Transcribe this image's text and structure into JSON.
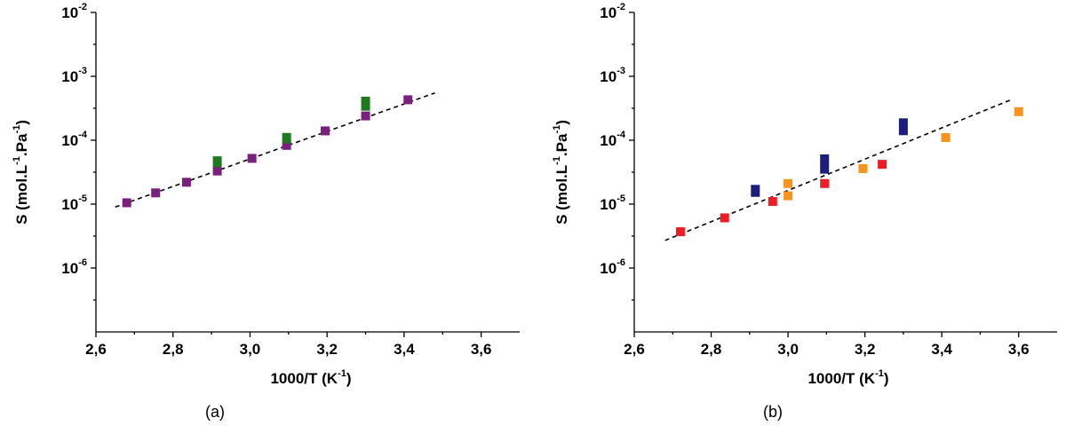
{
  "chart_data": [
    {
      "type": "scatter",
      "caption": "(a)",
      "xlabel_base": "1000/T (K",
      "xlabel_sup": "-1",
      "xlabel_end": ")",
      "ylabel_base": "S (mol.L",
      "ylabel_sup1": "-1",
      "ylabel_mid": ".Pa",
      "ylabel_sup2": "-1",
      "ylabel_end": ")",
      "xlim": [
        2.6,
        3.7
      ],
      "ylim": [
        1e-07,
        0.01
      ],
      "yscale": "log",
      "xticks": [
        "2,6",
        "2,8",
        "3,0",
        "3,2",
        "3,4",
        "3,6"
      ],
      "xtick_values": [
        2.6,
        2.8,
        3.0,
        3.2,
        3.4,
        3.6
      ],
      "ytick_exponents": [
        -6,
        -5,
        -4,
        -3,
        -2
      ],
      "ytick_base": "10",
      "grid": false,
      "series": [
        {
          "color": "#7b1f7e",
          "marker": "square",
          "points": [
            [
              2.68,
              1.05e-05
            ],
            [
              2.755,
              1.5e-05
            ],
            [
              2.835,
              2.2e-05
            ],
            [
              2.915,
              3.3e-05
            ],
            [
              3.005,
              5.2e-05
            ],
            [
              3.095,
              8.3e-05
            ],
            [
              3.195,
              0.00014
            ],
            [
              3.3,
              0.00024
            ],
            [
              3.41,
              0.00043
            ]
          ]
        },
        {
          "color": "#1e7a1e",
          "marker": "rect",
          "points": [
            [
              2.915,
              3.8e-05,
              5.6e-05
            ],
            [
              3.095,
              9e-05,
              0.00013
            ],
            [
              3.3,
              0.00029,
              0.00048
            ]
          ]
        }
      ],
      "fit_line": {
        "x": [
          2.65,
          3.48
        ],
        "y": [
          9e-06,
          0.00055
        ]
      }
    },
    {
      "type": "scatter",
      "caption": "(b)",
      "xlabel_base": "1000/T (K",
      "xlabel_sup": "-1",
      "xlabel_end": ")",
      "ylabel_base": "S (mol.L",
      "ylabel_sup1": "-1",
      "ylabel_mid": ".Pa",
      "ylabel_sup2": "-1",
      "ylabel_end": ")",
      "xlim": [
        2.6,
        3.7
      ],
      "ylim": [
        1e-07,
        0.01
      ],
      "yscale": "log",
      "xticks": [
        "2,6",
        "2,8",
        "3,0",
        "3,2",
        "3,4",
        "3,6"
      ],
      "xtick_values": [
        2.6,
        2.8,
        3.0,
        3.2,
        3.4,
        3.6
      ],
      "ytick_exponents": [
        -6,
        -5,
        -4,
        -3,
        -2
      ],
      "ytick_base": "10",
      "grid": false,
      "series": [
        {
          "color": "#ee1c24",
          "marker": "square",
          "points": [
            [
              2.72,
              3.7e-06
            ],
            [
              2.835,
              6.1e-06
            ],
            [
              2.96,
              1.1e-05
            ],
            [
              3.095,
              2.1e-05
            ],
            [
              3.245,
              4.2e-05
            ]
          ]
        },
        {
          "color": "#f7941d",
          "marker": "square",
          "points": [
            [
              3.0,
              2.1e-05
            ],
            [
              3.0,
              1.35e-05
            ],
            [
              3.195,
              3.6e-05
            ],
            [
              3.41,
              0.00011
            ],
            [
              3.6,
              0.00028
            ]
          ]
        },
        {
          "color": "#1b1f7a",
          "marker": "rect",
          "points": [
            [
              2.915,
              1.3e-05,
              2e-05
            ],
            [
              3.095,
              3e-05,
              6e-05
            ],
            [
              3.3,
              0.00012,
              0.00022
            ]
          ]
        }
      ],
      "fit_line": {
        "x": [
          2.68,
          3.58
        ],
        "y": [
          2.7e-06,
          0.00043
        ]
      }
    }
  ]
}
